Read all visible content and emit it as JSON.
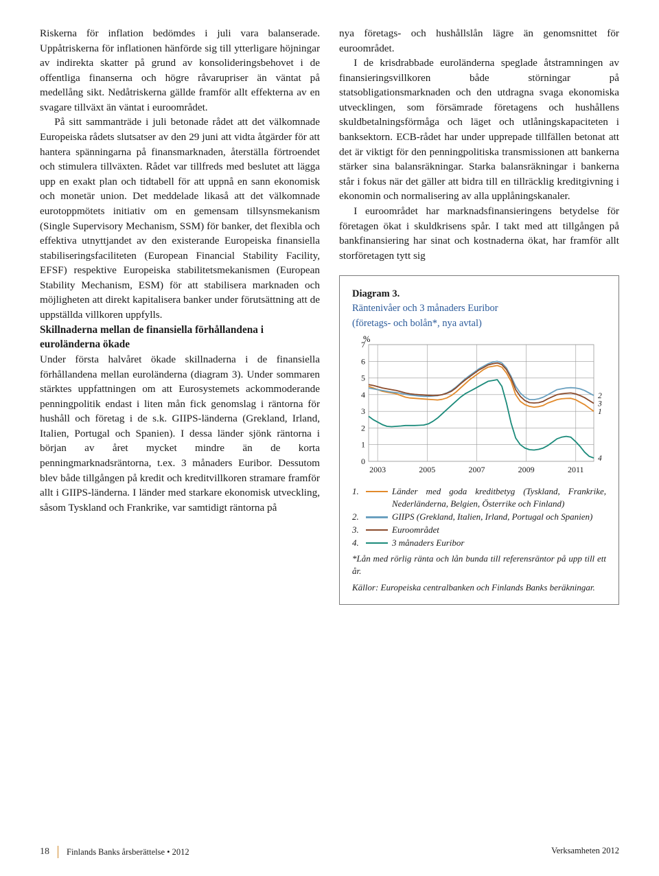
{
  "left": {
    "p1": "Riskerna för inflation bedömdes i juli vara balanserade. Uppåtriskerna för inflationen hänförde sig till ytterligare höjningar av indirekta skatter på grund av konsolideringsbehovet i de offentliga finanserna och högre råvarupriser än väntat på medellång sikt. Nedåtriskerna gällde framför allt effekterna av en svagare tillväxt än väntat i euroområdet.",
    "p2": "På sitt sammanträde i juli betonade rådet att det välkomnade Europeiska rådets slutsatser av den 29 juni att vidta åtgärder för att hantera spänningarna på finansmarknaden, återställa förtroendet och stimulera tillväxten. Rådet var tillfreds med beslutet att lägga upp en exakt plan och tidtabell för att uppnå en sann ekonomisk och monetär union. Det meddelade likaså att det välkomnade eurotoppmötets initiativ om en gemensam tillsynsmekanism (Single Supervisory Mechanism, SSM) för banker, det flexibla och effektiva utnyttjandet av den existerande Europeiska finansiella stabiliseringsfaciliteten (European Financial Stability Facility, EFSF) respektive Europeiska stabilitetsmekanismen (European Stability Mechanism, ESM) för att stabilisera marknaden och möjligheten att direkt kapitalisera banker under förutsättning att de uppställda villkoren uppfylls.",
    "subhead": "Skillnaderna mellan de finansiella förhållandena i euroländerna ökade",
    "p3": "Under första halvåret ökade skillnaderna i de finansiella förhållandena mellan euroländerna (diagram 3). Under sommaren stärktes uppfattningen om att Eurosystemets ackommoderande penningpolitik endast i liten mån fick genomslag i räntorna för hushåll och företag i de s.k. GIIPS-länderna (Grekland, Irland, Italien, Portugal och Spanien). I dessa länder sjönk räntorna i början av året mycket mindre än de korta penningmarknadsräntorna, t.ex. 3 månaders Euribor. Dessutom blev både tillgången på kredit och kreditvillkoren stramare framför allt i GIIPS-länderna. I länder med starkare ekonomisk utveckling, såsom Tyskland och Frankrike, var samtidigt räntorna på"
  },
  "right": {
    "p1": "nya företags- och hushållslån lägre än genomsnittet för euroområdet.",
    "p2": "I de krisdrabbade euroländerna speglade åtstramningen av finansieringsvillkoren både störningar på statsobligationsmarknaden och den utdragna svaga ekonomiska utvecklingen, som försämrade företagens och hushållens skuldbetalningsförmåga och läget och utlåningskapaciteten i banksektorn. ECB-rådet har under upprepade tillfällen betonat att det är viktigt för den penningpolitiska transmissionen att bankerna stärker sina balansräkningar. Starka balansräkningar i bankerna står i fokus när det gäller att bidra till en tillräcklig kreditgivning i ekonomin och normalisering av alla upplåningskanaler.",
    "p3": "I euroområdet har marknadsfinansieringens betydelse för företagen ökat i skuldkrisens spår. I takt med att tillgången på bankfinansiering har sinat och kostnaderna ökat, har framför allt storföretagen tytt sig"
  },
  "chart": {
    "title": "Diagram 3.",
    "subtitle1": "Räntenivåer och 3 månaders Euribor",
    "subtitle2": "(företags- och bolån*, nya avtal)",
    "y_unit": "%",
    "ylim": [
      0,
      7
    ],
    "yticks": [
      0,
      1,
      2,
      3,
      4,
      5,
      6,
      7
    ],
    "xticks": [
      "2003",
      "2005",
      "2007",
      "2009",
      "2011"
    ],
    "xtick_pos": [
      0.04,
      0.26,
      0.48,
      0.7,
      0.92
    ],
    "grid_color": "#9a9a9a",
    "bg_color": "#ffffff",
    "series": [
      {
        "name": "Länder med goda kreditbetyg",
        "color": "#e28a2b",
        "data": [
          4.5,
          4.4,
          4.3,
          4.2,
          4.15,
          4.1,
          4.05,
          3.95,
          3.85,
          3.8,
          3.78,
          3.76,
          3.74,
          3.72,
          3.7,
          3.68,
          3.72,
          3.8,
          3.95,
          4.15,
          4.4,
          4.65,
          4.9,
          5.1,
          5.3,
          5.5,
          5.65,
          5.7,
          5.75,
          5.65,
          5.3,
          4.8,
          4.0,
          3.6,
          3.4,
          3.3,
          3.25,
          3.28,
          3.35,
          3.5,
          3.6,
          3.7,
          3.75,
          3.77,
          3.78,
          3.7,
          3.55,
          3.4,
          3.2,
          3.0
        ]
      },
      {
        "name": "GIIPS",
        "color": "#6aa0bf",
        "data": [
          4.4,
          4.35,
          4.3,
          4.25,
          4.2,
          4.15,
          4.12,
          4.08,
          4.02,
          3.98,
          3.95,
          3.92,
          3.9,
          3.9,
          3.92,
          3.94,
          4.0,
          4.1,
          4.25,
          4.45,
          4.7,
          4.95,
          5.15,
          5.35,
          5.55,
          5.7,
          5.85,
          5.95,
          6.0,
          5.9,
          5.6,
          5.1,
          4.5,
          4.1,
          3.85,
          3.7,
          3.7,
          3.75,
          3.85,
          4.0,
          4.15,
          4.3,
          4.35,
          4.4,
          4.42,
          4.4,
          4.35,
          4.25,
          4.1,
          3.95
        ]
      },
      {
        "name": "Euroområdet",
        "color": "#8a4a2a",
        "data": [
          4.6,
          4.55,
          4.48,
          4.4,
          4.35,
          4.3,
          4.25,
          4.18,
          4.1,
          4.05,
          4.02,
          4.0,
          3.98,
          3.96,
          3.95,
          3.96,
          4.0,
          4.08,
          4.2,
          4.4,
          4.65,
          4.88,
          5.08,
          5.28,
          5.48,
          5.62,
          5.78,
          5.85,
          5.9,
          5.8,
          5.5,
          5.0,
          4.3,
          3.9,
          3.65,
          3.52,
          3.5,
          3.52,
          3.6,
          3.75,
          3.88,
          4.0,
          4.05,
          4.08,
          4.1,
          4.05,
          3.95,
          3.82,
          3.65,
          3.48
        ]
      },
      {
        "name": "3 månaders Euribor",
        "color": "#1a8a7a",
        "data": [
          2.7,
          2.5,
          2.35,
          2.2,
          2.1,
          2.08,
          2.1,
          2.12,
          2.15,
          2.15,
          2.15,
          2.16,
          2.18,
          2.25,
          2.4,
          2.6,
          2.85,
          3.1,
          3.35,
          3.6,
          3.85,
          4.05,
          4.2,
          4.35,
          4.5,
          4.65,
          4.8,
          4.85,
          4.9,
          4.5,
          3.5,
          2.3,
          1.4,
          1.0,
          0.8,
          0.7,
          0.68,
          0.72,
          0.8,
          0.95,
          1.15,
          1.35,
          1.45,
          1.5,
          1.45,
          1.2,
          0.9,
          0.55,
          0.3,
          0.2
        ]
      }
    ],
    "side_labels": [
      {
        "num": "2",
        "y": 3.95
      },
      {
        "num": "3",
        "y": 3.48
      },
      {
        "num": "1",
        "y": 3.0
      },
      {
        "num": "4",
        "y": 0.2
      }
    ],
    "legend": [
      {
        "n": "1.",
        "color": "#e28a2b",
        "text": "Länder med goda kreditbetyg (Tyskland, Frankrike, Nederländerna, Belgien, Österrike och Finland)"
      },
      {
        "n": "2.",
        "color": "#6aa0bf",
        "text": "GIIPS (Grekland, Italien, Irland, Portugal och Spanien)"
      },
      {
        "n": "3.",
        "color": "#8a4a2a",
        "text": "Euroområdet"
      },
      {
        "n": "4.",
        "color": "#1a8a7a",
        "text": "3 månaders Euribor"
      }
    ],
    "note": "*Lån med rörlig ränta och lån bunda till referensräntor på upp till ett år.",
    "source": "Källor: Europeiska centralbanken och Finlands Banks beräkningar."
  },
  "footer": {
    "page": "18",
    "pub": "Finlands Banks årsberättelse • 2012",
    "section": "Verksamheten 2012"
  }
}
